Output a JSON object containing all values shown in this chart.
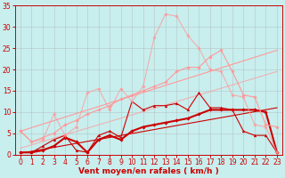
{
  "background_color": "#c8eeee",
  "grid_color": "#aaaaaa",
  "xlabel": "Vent moyen/en rafales ( km/h )",
  "xlim": [
    -0.5,
    23.5
  ],
  "ylim": [
    0,
    35
  ],
  "xticks": [
    0,
    1,
    2,
    3,
    4,
    5,
    6,
    7,
    8,
    9,
    10,
    11,
    12,
    13,
    14,
    15,
    16,
    17,
    18,
    19,
    20,
    21,
    22,
    23
  ],
  "yticks": [
    0,
    5,
    10,
    15,
    20,
    25,
    30,
    35
  ],
  "axis_fontsize": 5.5,
  "label_fontsize": 6.5,
  "series": [
    {
      "x": [
        0,
        23
      ],
      "y": [
        0.3,
        11.0
      ],
      "color": "#cc0000",
      "linewidth": 0.8,
      "marker": null,
      "alpha": 1.0
    },
    {
      "x": [
        0,
        23
      ],
      "y": [
        5.5,
        24.5
      ],
      "color": "#ff9999",
      "linewidth": 0.8,
      "marker": null,
      "alpha": 1.0
    },
    {
      "x": [
        0,
        23
      ],
      "y": [
        1.5,
        19.5
      ],
      "color": "#ff9999",
      "linewidth": 0.8,
      "marker": null,
      "alpha": 0.7
    },
    {
      "x": [
        0,
        1,
        2,
        3,
        4,
        5,
        6,
        7,
        8,
        9,
        10,
        11,
        12,
        13,
        14,
        15,
        16,
        17,
        18,
        19,
        20,
        21,
        22,
        23
      ],
      "y": [
        0.5,
        0.5,
        1.0,
        2.0,
        4.0,
        3.0,
        0.5,
        3.5,
        4.5,
        3.5,
        5.5,
        6.5,
        7.0,
        7.5,
        8.0,
        8.5,
        9.5,
        10.5,
        10.5,
        10.5,
        10.5,
        10.5,
        10.0,
        0.5
      ],
      "color": "#cc0000",
      "linewidth": 1.5,
      "marker": "D",
      "markersize": 1.8,
      "alpha": 1.0
    },
    {
      "x": [
        0,
        1,
        2,
        3,
        4,
        5,
        6,
        7,
        8,
        9,
        10,
        11,
        12,
        13,
        14,
        15,
        16,
        17,
        18,
        19,
        20,
        21,
        22,
        23
      ],
      "y": [
        0.5,
        0.5,
        2.0,
        3.5,
        4.5,
        1.0,
        0.5,
        4.5,
        5.5,
        4.0,
        12.5,
        10.5,
        11.5,
        11.5,
        12.0,
        10.5,
        14.5,
        11.0,
        11.0,
        10.5,
        5.5,
        4.5,
        4.5,
        0.5
      ],
      "color": "#cc0000",
      "linewidth": 0.8,
      "marker": "^",
      "markersize": 2.0,
      "alpha": 1.0
    },
    {
      "x": [
        0,
        1,
        2,
        3,
        4,
        5,
        6,
        7,
        8,
        9,
        10,
        11,
        12,
        13,
        14,
        15,
        16,
        17,
        18,
        19,
        20,
        21,
        22,
        23
      ],
      "y": [
        5.5,
        3.0,
        4.0,
        5.0,
        7.0,
        8.0,
        9.5,
        10.5,
        11.5,
        13.0,
        14.0,
        15.0,
        16.0,
        17.0,
        19.5,
        20.5,
        20.5,
        23.0,
        24.5,
        19.5,
        14.0,
        13.5,
        7.0,
        6.5
      ],
      "color": "#ff9999",
      "linewidth": 0.8,
      "marker": "D",
      "markersize": 1.8,
      "alpha": 1.0
    },
    {
      "x": [
        0,
        1,
        2,
        3,
        4,
        5,
        6,
        7,
        8,
        9,
        10,
        11,
        12,
        13,
        14,
        15,
        16,
        17,
        18,
        19,
        20,
        21,
        22,
        23
      ],
      "y": [
        5.5,
        3.0,
        3.5,
        9.5,
        4.5,
        6.5,
        14.5,
        15.5,
        10.5,
        15.5,
        12.5,
        16.0,
        27.5,
        33.0,
        32.5,
        28.0,
        25.0,
        20.0,
        19.5,
        14.0,
        13.5,
        7.0,
        6.5,
        0.5
      ],
      "color": "#ff9999",
      "linewidth": 0.8,
      "marker": "D",
      "markersize": 1.8,
      "alpha": 0.75
    }
  ]
}
